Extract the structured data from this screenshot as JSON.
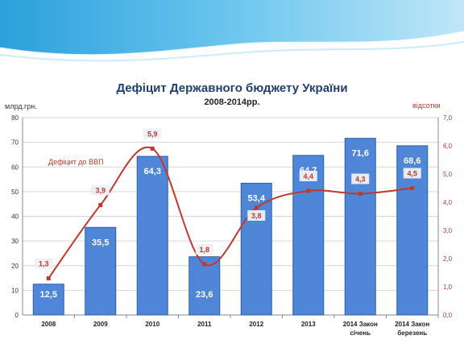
{
  "chart_data": {
    "type": "bar",
    "title": "Дефіцит Державного бюджету України",
    "subtitle": "2008-2014рр.",
    "ylabel_left": "млрд.грн.",
    "ylabel_right": "відсотки",
    "categories": [
      [
        "2008"
      ],
      [
        "2009"
      ],
      [
        "2010"
      ],
      [
        "2011"
      ],
      [
        "2012"
      ],
      [
        "2013"
      ],
      [
        "2014 Закон",
        "січень"
      ],
      [
        "2014 Закон",
        "березень"
      ]
    ],
    "bar_values": [
      12.5,
      35.5,
      64.3,
      23.6,
      53.4,
      64.7,
      71.6,
      68.6
    ],
    "bar_labels": [
      "12,5",
      "35,5",
      "64,3",
      "23,6",
      "53,4",
      "64,7",
      "71,6",
      "68,6"
    ],
    "line_series_name": "Дефіцит до ВВП",
    "line_values": [
      1.3,
      3.9,
      5.9,
      1.8,
      3.8,
      4.4,
      4.3,
      4.5
    ],
    "line_labels": [
      "1,3",
      "3,9",
      "5,9",
      "1,8",
      "3,8",
      "4,4",
      "4,3",
      "4,5"
    ],
    "ylim_left": [
      0,
      80
    ],
    "ylim_right": [
      0,
      7
    ],
    "yticks_left": [
      "0",
      "10",
      "20",
      "30",
      "40",
      "50",
      "60",
      "70",
      "80"
    ],
    "yticks_right": [
      "0,0",
      "1,0",
      "2,0",
      "3,0",
      "4,0",
      "5,0",
      "6,0",
      "7,0"
    ],
    "grid": true,
    "colors": {
      "bar": "#4f86d8",
      "bar_stroke": "#2e5fa8",
      "line": "#c0392b",
      "title": "#1f3f6e"
    }
  }
}
